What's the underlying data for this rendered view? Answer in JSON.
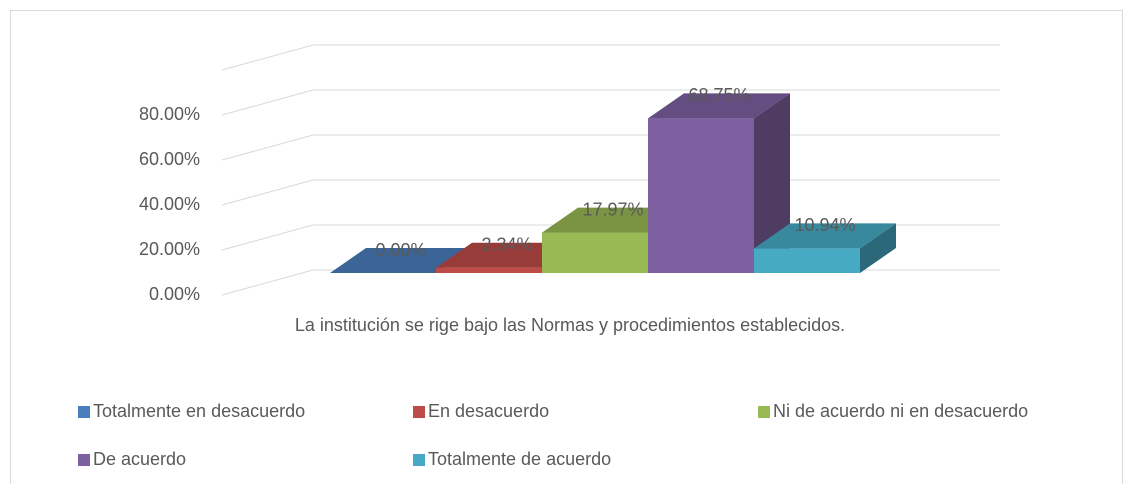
{
  "chart_data": {
    "type": "bar3d",
    "categories": [
      "La institución se rige bajo las Normas y procedimientos establecidos."
    ],
    "series": [
      {
        "name": "Totalmente en desacuerdo",
        "color": "#4a7ebb",
        "values": [
          0
        ],
        "value_labels": [
          "0.00%"
        ]
      },
      {
        "name": "En desacuerdo",
        "color": "#be4b48",
        "values": [
          2.34
        ],
        "value_labels": [
          "2.34%"
        ]
      },
      {
        "name": "Ni de acuerdo ni en desacuerdo",
        "color": "#98b954",
        "values": [
          17.97
        ],
        "value_labels": [
          "17.97%"
        ]
      },
      {
        "name": "De acuerdo",
        "color": "#7d60a0",
        "values": [
          68.75
        ],
        "value_labels": [
          "68.75%"
        ]
      },
      {
        "name": "Totalmente de acuerdo",
        "color": "#46aac5",
        "values": [
          10.94
        ],
        "value_labels": [
          "10.94%"
        ]
      }
    ],
    "ylim": [
      0,
      100
    ],
    "yticks": [
      {
        "value": 0,
        "label": "0.00%"
      },
      {
        "value": 20,
        "label": "20.00%"
      },
      {
        "value": 40,
        "label": "40.00%"
      },
      {
        "value": 60,
        "label": "60.00%"
      },
      {
        "value": 80,
        "label": "80.00%"
      }
    ],
    "grid": true,
    "legend": "bottom"
  }
}
